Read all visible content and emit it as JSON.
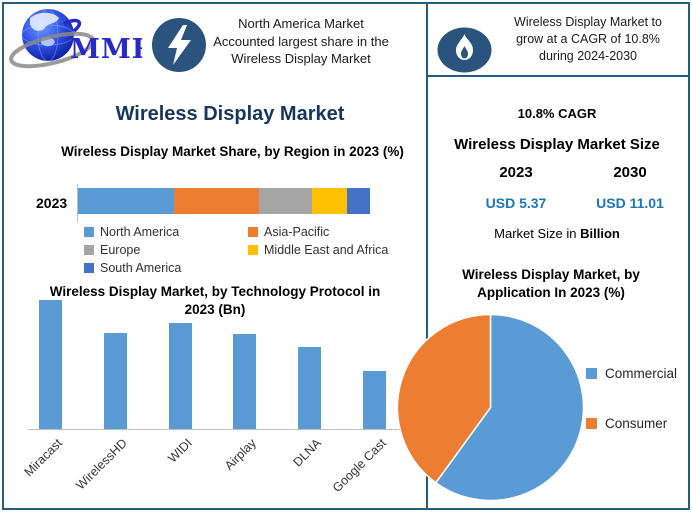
{
  "header": {
    "logo_text": "MMR",
    "left_icon": "lightning-icon",
    "left_callout_lines": [
      "North America Market",
      "Accounted largest share in the",
      "Wireless Display Market"
    ],
    "right_icon": "flame-icon",
    "right_callout_lines": [
      "Wireless Display Market to",
      "grow at a CAGR of 10.8%",
      "during 2024-2030"
    ]
  },
  "left_section": {
    "title": "Wireless Display Market"
  },
  "right_panel": {
    "cagr": "10.8% CAGR",
    "size_title": "Wireless Display Market Size",
    "columns": [
      {
        "year": "2023",
        "value": "USD 5.37"
      },
      {
        "year": "2030",
        "value": "USD 11.01"
      }
    ],
    "note_prefix": "Market Size in ",
    "note_bold": "Billion"
  },
  "chart_data": [
    {
      "type": "bar",
      "subtype": "stacked-horizontal",
      "title": "Wireless Display Market Share, by Region in 2023 (%)",
      "categories": [
        "2023"
      ],
      "series": [
        {
          "name": "North America",
          "values": [
            33
          ],
          "color": "#5B9BD5"
        },
        {
          "name": "Asia-Pacific",
          "values": [
            29
          ],
          "color": "#ED7D31"
        },
        {
          "name": "Europe",
          "values": [
            18
          ],
          "color": "#A5A5A5"
        },
        {
          "name": "Middle East and Africa",
          "values": [
            12
          ],
          "color": "#FFC000"
        },
        {
          "name": "South America",
          "values": [
            8
          ],
          "color": "#4472C4"
        }
      ],
      "xlim": [
        0,
        100
      ],
      "unit": "%",
      "legend_position": "below",
      "gridlines": false
    },
    {
      "type": "bar",
      "subtype": "vertical",
      "title": "Wireless Display Market, by Technology Protocol in 2023 (Bn)",
      "categories": [
        "Miracast",
        "WirelessHD",
        "WIDI",
        "Airplay",
        "DLNA",
        "Google Cast"
      ],
      "values": [
        1.29,
        0.96,
        1.06,
        0.95,
        0.82,
        0.58
      ],
      "ylim": [
        0,
        1.39
      ],
      "bar_color": "#5B9BD5",
      "unit": "Bn",
      "xlabel_rotation_deg": 45,
      "gridlines": false
    },
    {
      "type": "pie",
      "title": "Wireless Display Market, by Application In 2023 (%)",
      "labels": [
        "Commercial",
        "Consumer"
      ],
      "values": [
        60,
        40
      ],
      "colors": [
        "#5B9BD5",
        "#ED7D31"
      ],
      "start_angle_deg": 0,
      "direction": "clockwise",
      "legend_position": "right",
      "unit": "%"
    }
  ],
  "colors": {
    "accent_border": "#245E7E",
    "icon_circle": "#2A547E",
    "navy_title": "#17365D",
    "value_blue": "#1B75BC",
    "logo_blue": "#2929C8"
  }
}
